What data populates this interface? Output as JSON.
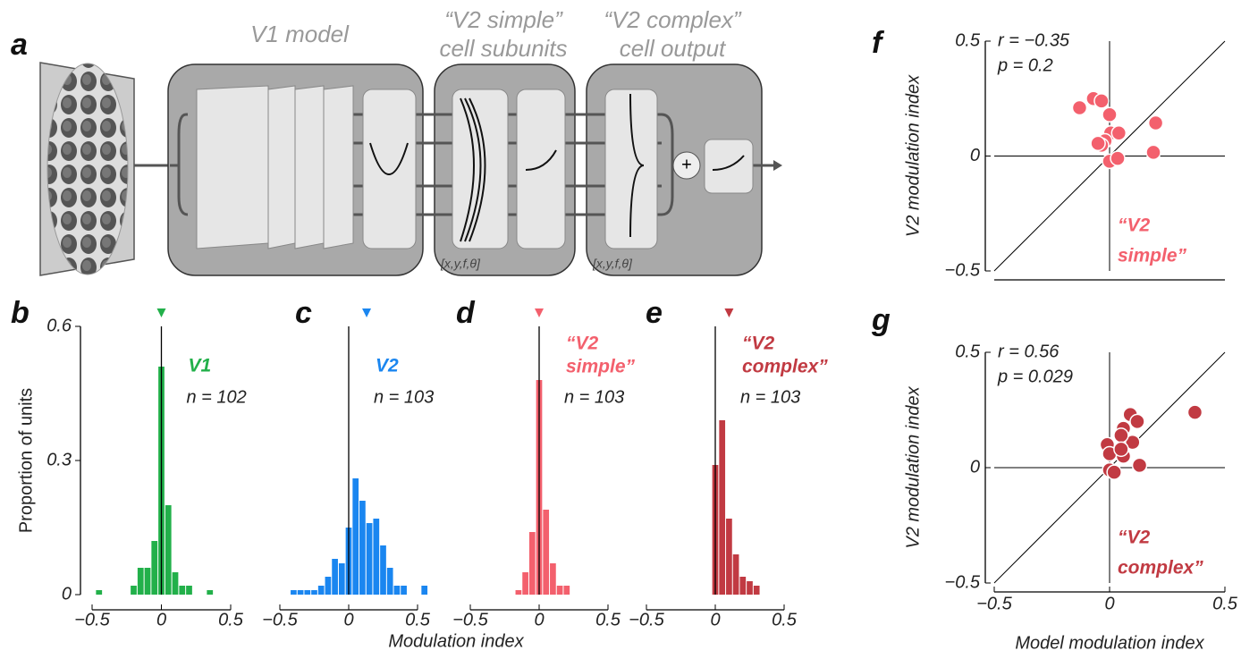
{
  "panel_a": {
    "letter": "a",
    "v1_title": "V1 model",
    "v2s_title": [
      "“V2 simple”",
      "cell subunits"
    ],
    "v2c_title": [
      "“V2 complex”",
      "cell output"
    ],
    "v2s_params": "[x,y,f,θ]",
    "v2c_params": "[x,y,f,θ]",
    "sum": "+"
  },
  "chart_data": [
    {
      "type": "histogram",
      "panel": "b",
      "label": [
        "V1"
      ],
      "n_label": "n = 102",
      "color": "#22b04a",
      "ylabel": "Proportion of units",
      "ylim": [
        0,
        0.6
      ],
      "yticks": [
        0,
        0.3,
        0.6
      ],
      "xlim": [
        -0.5,
        0.5
      ],
      "xticks": [
        {
          "value": -0.5,
          "label": "−0.5"
        },
        0,
        0.5
      ],
      "mean": 0,
      "bins": [
        -0.525,
        -0.475,
        -0.425,
        -0.375,
        -0.325,
        -0.275,
        -0.225,
        -0.175,
        -0.125,
        -0.075,
        -0.025,
        0.025,
        0.075,
        0.125,
        0.175,
        0.225,
        0.275,
        0.325,
        0.375,
        0.425,
        0.475,
        0.525,
        0.575
      ],
      "values": [
        0,
        0.01,
        0,
        0,
        0,
        0,
        0.02,
        0.06,
        0.06,
        0.12,
        0.51,
        0.2,
        0.05,
        0.02,
        0.02,
        0,
        0,
        0.01,
        0,
        0,
        0,
        0
      ]
    },
    {
      "type": "histogram",
      "panel": "c",
      "label": [
        "V2"
      ],
      "n_label": "n = 103",
      "color": "#1a86f0",
      "xlabel": "Modulation index",
      "ylim": [
        0,
        0.6
      ],
      "xlim": [
        -0.5,
        0.5
      ],
      "xticks": [
        {
          "value": -0.5,
          "label": "−0.5"
        },
        0,
        0.5
      ],
      "mean": 0.13,
      "bins": [
        -0.525,
        -0.475,
        -0.425,
        -0.375,
        -0.325,
        -0.275,
        -0.225,
        -0.175,
        -0.125,
        -0.075,
        -0.025,
        0.025,
        0.075,
        0.125,
        0.175,
        0.225,
        0.275,
        0.325,
        0.375,
        0.425,
        0.475,
        0.525,
        0.575
      ],
      "values": [
        0,
        0,
        0.01,
        0.01,
        0.01,
        0.01,
        0.02,
        0.04,
        0.08,
        0.07,
        0.15,
        0.26,
        0.21,
        0.16,
        0.17,
        0.11,
        0.06,
        0.02,
        0.02,
        0,
        0,
        0.02
      ]
    },
    {
      "type": "histogram",
      "panel": "d",
      "label": [
        "“V2",
        "simple”"
      ],
      "n_label": "n = 103",
      "color": "#f3606d",
      "ylim": [
        0,
        0.6
      ],
      "xlim": [
        -0.5,
        0.5
      ],
      "xticks": [
        {
          "value": -0.5,
          "label": "−0.5"
        },
        0,
        0.5
      ],
      "mean": 0,
      "bins": [
        -0.525,
        -0.475,
        -0.425,
        -0.375,
        -0.325,
        -0.275,
        -0.225,
        -0.175,
        -0.125,
        -0.075,
        -0.025,
        0.025,
        0.075,
        0.125,
        0.175,
        0.225,
        0.275,
        0.325,
        0.375,
        0.425,
        0.475,
        0.525,
        0.575
      ],
      "values": [
        0,
        0,
        0,
        0,
        0,
        0,
        0,
        0.01,
        0.05,
        0.14,
        0.48,
        0.19,
        0.07,
        0.02,
        0.02,
        0,
        0,
        0,
        0,
        0,
        0,
        0
      ]
    },
    {
      "type": "histogram",
      "panel": "e",
      "label": [
        "“V2",
        "complex”"
      ],
      "n_label": "n = 103",
      "color": "#c13a42",
      "ylim": [
        0,
        0.6
      ],
      "xlim": [
        -0.5,
        0.5
      ],
      "xticks": [
        {
          "value": -0.5,
          "label": "−0.5"
        },
        0,
        0.5
      ],
      "mean": 0.1,
      "bins": [
        -0.525,
        -0.475,
        -0.425,
        -0.375,
        -0.325,
        -0.275,
        -0.225,
        -0.175,
        -0.125,
        -0.075,
        -0.025,
        0.025,
        0.075,
        0.125,
        0.175,
        0.225,
        0.275,
        0.325,
        0.375,
        0.425,
        0.475,
        0.525,
        0.575
      ],
      "values": [
        0,
        0,
        0,
        0,
        0,
        0,
        0,
        0,
        0,
        0,
        0.29,
        0.39,
        0.17,
        0.09,
        0.04,
        0.03,
        0.02,
        0,
        0,
        0,
        0,
        0
      ]
    },
    {
      "type": "scatter",
      "panel": "f",
      "color": "#f3606d",
      "stats": [
        "r = −0.35",
        "p = 0.2"
      ],
      "annotation": [
        "“V2",
        "simple”"
      ],
      "ylabel": "V2 modulation index",
      "xlim": [
        -0.5,
        0.5
      ],
      "ylim": [
        -0.5,
        0.5
      ],
      "yticks": [
        {
          "value": -0.5,
          "label": "−0.5"
        },
        0,
        0.5
      ],
      "x": [
        -0.13,
        -0.07,
        -0.035,
        0,
        0.005,
        0.04,
        -0.02,
        -0.035,
        0,
        0.035,
        0.2,
        0.19,
        -0.05
      ],
      "values": [
        0.21,
        0.25,
        0.24,
        0.18,
        0.1,
        0.1,
        0.066,
        0.047,
        -0.023,
        -0.01,
        0.144,
        0.016,
        0.055
      ]
    },
    {
      "type": "scatter",
      "panel": "g",
      "color": "#c13a42",
      "stats": [
        "r = 0.56",
        "p = 0.029"
      ],
      "annotation": [
        "“V2",
        "complex”"
      ],
      "ylabel": "V2 modulation index",
      "xlabel": "Model modulation index",
      "xlim": [
        -0.5,
        0.5
      ],
      "ylim": [
        -0.5,
        0.5
      ],
      "yticks": [
        {
          "value": -0.5,
          "label": "−0.5"
        },
        0,
        0.5
      ],
      "xticks": [
        {
          "value": -0.5,
          "label": "−0.5"
        },
        0,
        0.5
      ],
      "x": [
        0.09,
        0.12,
        0.06,
        0.1,
        -0.01,
        0.05,
        0,
        0.06,
        0.13,
        0,
        0.02,
        0.37,
        0.05
      ],
      "values": [
        0.23,
        0.2,
        0.17,
        0.11,
        0.1,
        0.14,
        0.06,
        0.05,
        0.01,
        -0.01,
        -0.02,
        0.24,
        0.08
      ]
    }
  ]
}
